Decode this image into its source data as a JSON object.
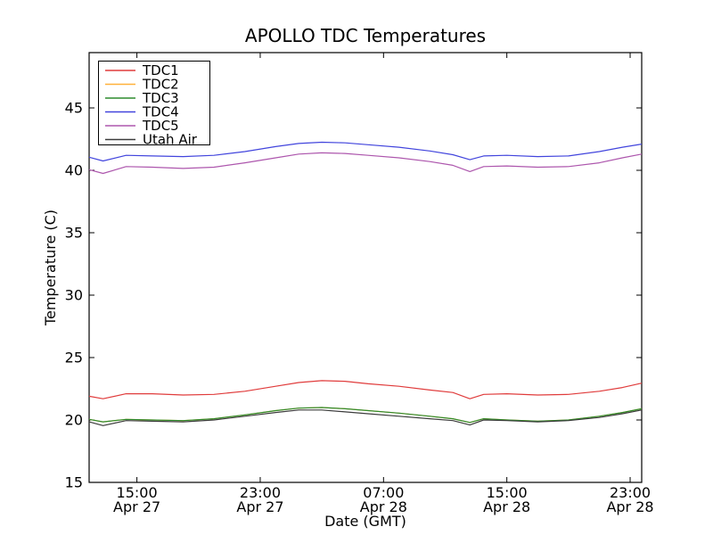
{
  "window_title": "APOLLO TDC Temperatures",
  "chart_data": {
    "type": "line",
    "title": "APOLLO TDC Temperatures",
    "xlabel": "Date (GMT)",
    "ylabel": "Temperature (C)",
    "grid": false,
    "legend_position": "upper left",
    "legend_entries": [
      "TDC1",
      "TDC2",
      "TDC3",
      "TDC4",
      "TDC5",
      "Utah Air"
    ],
    "x_unit": "hours since Apr 27 00:00 GMT",
    "xlim": [
      11.9,
      47.75
    ],
    "ylim": [
      15,
      49.43
    ],
    "yticks": [
      15,
      20,
      25,
      30,
      35,
      40,
      45
    ],
    "xticks": [
      {
        "h": 15,
        "time": "15:00",
        "date": "Apr 27"
      },
      {
        "h": 23,
        "time": "23:00",
        "date": "Apr 27"
      },
      {
        "h": 31,
        "time": "07:00",
        "date": "Apr 28"
      },
      {
        "h": 39,
        "time": "15:00",
        "date": "Apr 28"
      },
      {
        "h": 47,
        "time": "23:00",
        "date": "Apr 28"
      }
    ],
    "x": [
      11.9,
      12.8,
      14.3,
      16,
      18,
      20,
      22,
      24,
      25.5,
      27,
      28.5,
      30,
      32,
      34,
      35.5,
      36.6,
      37.5,
      39,
      41,
      43,
      45,
      46.5,
      47.75
    ],
    "series": [
      {
        "name": "TDC1",
        "color": "#e03c3c",
        "values": [
          21.9,
          21.7,
          22.1,
          22.1,
          22.0,
          22.05,
          22.3,
          22.7,
          23.0,
          23.15,
          23.1,
          22.9,
          22.7,
          22.4,
          22.2,
          21.7,
          22.05,
          22.1,
          22.0,
          22.05,
          22.3,
          22.6,
          22.95
        ]
      },
      {
        "name": "TDC2",
        "color": "#ffb13b",
        "values": [
          20.05,
          19.85,
          20.05,
          20.0,
          19.95,
          20.1,
          20.4,
          20.75,
          20.95,
          21.0,
          20.9,
          20.75,
          20.55,
          20.3,
          20.1,
          19.8,
          20.1,
          20.0,
          19.9,
          20.0,
          20.3,
          20.6,
          20.9
        ]
      },
      {
        "name": "TDC3",
        "color": "#2e8b2e",
        "values": [
          20.05,
          19.85,
          20.05,
          20.0,
          19.95,
          20.1,
          20.4,
          20.75,
          20.95,
          21.0,
          20.9,
          20.75,
          20.55,
          20.3,
          20.1,
          19.8,
          20.1,
          20.0,
          19.9,
          20.0,
          20.3,
          20.6,
          20.9
        ]
      },
      {
        "name": "TDC4",
        "color": "#4245dd",
        "values": [
          41.05,
          40.75,
          41.2,
          41.15,
          41.1,
          41.2,
          41.5,
          41.9,
          42.15,
          42.25,
          42.2,
          42.05,
          41.85,
          41.55,
          41.25,
          40.85,
          41.15,
          41.2,
          41.1,
          41.15,
          41.5,
          41.85,
          42.1
        ]
      },
      {
        "name": "TDC5",
        "color": "#ad56ad",
        "values": [
          40.05,
          39.75,
          40.3,
          40.25,
          40.15,
          40.25,
          40.6,
          41.0,
          41.3,
          41.4,
          41.35,
          41.2,
          41.0,
          40.7,
          40.4,
          39.9,
          40.3,
          40.35,
          40.25,
          40.3,
          40.6,
          41.0,
          41.3
        ]
      },
      {
        "name": "Utah Air",
        "color": "#3c3c3c",
        "values": [
          19.85,
          19.55,
          19.95,
          19.9,
          19.85,
          20.0,
          20.3,
          20.6,
          20.8,
          20.8,
          20.65,
          20.5,
          20.3,
          20.1,
          19.95,
          19.6,
          20.0,
          19.95,
          19.85,
          19.95,
          20.2,
          20.5,
          20.8
        ]
      }
    ]
  }
}
